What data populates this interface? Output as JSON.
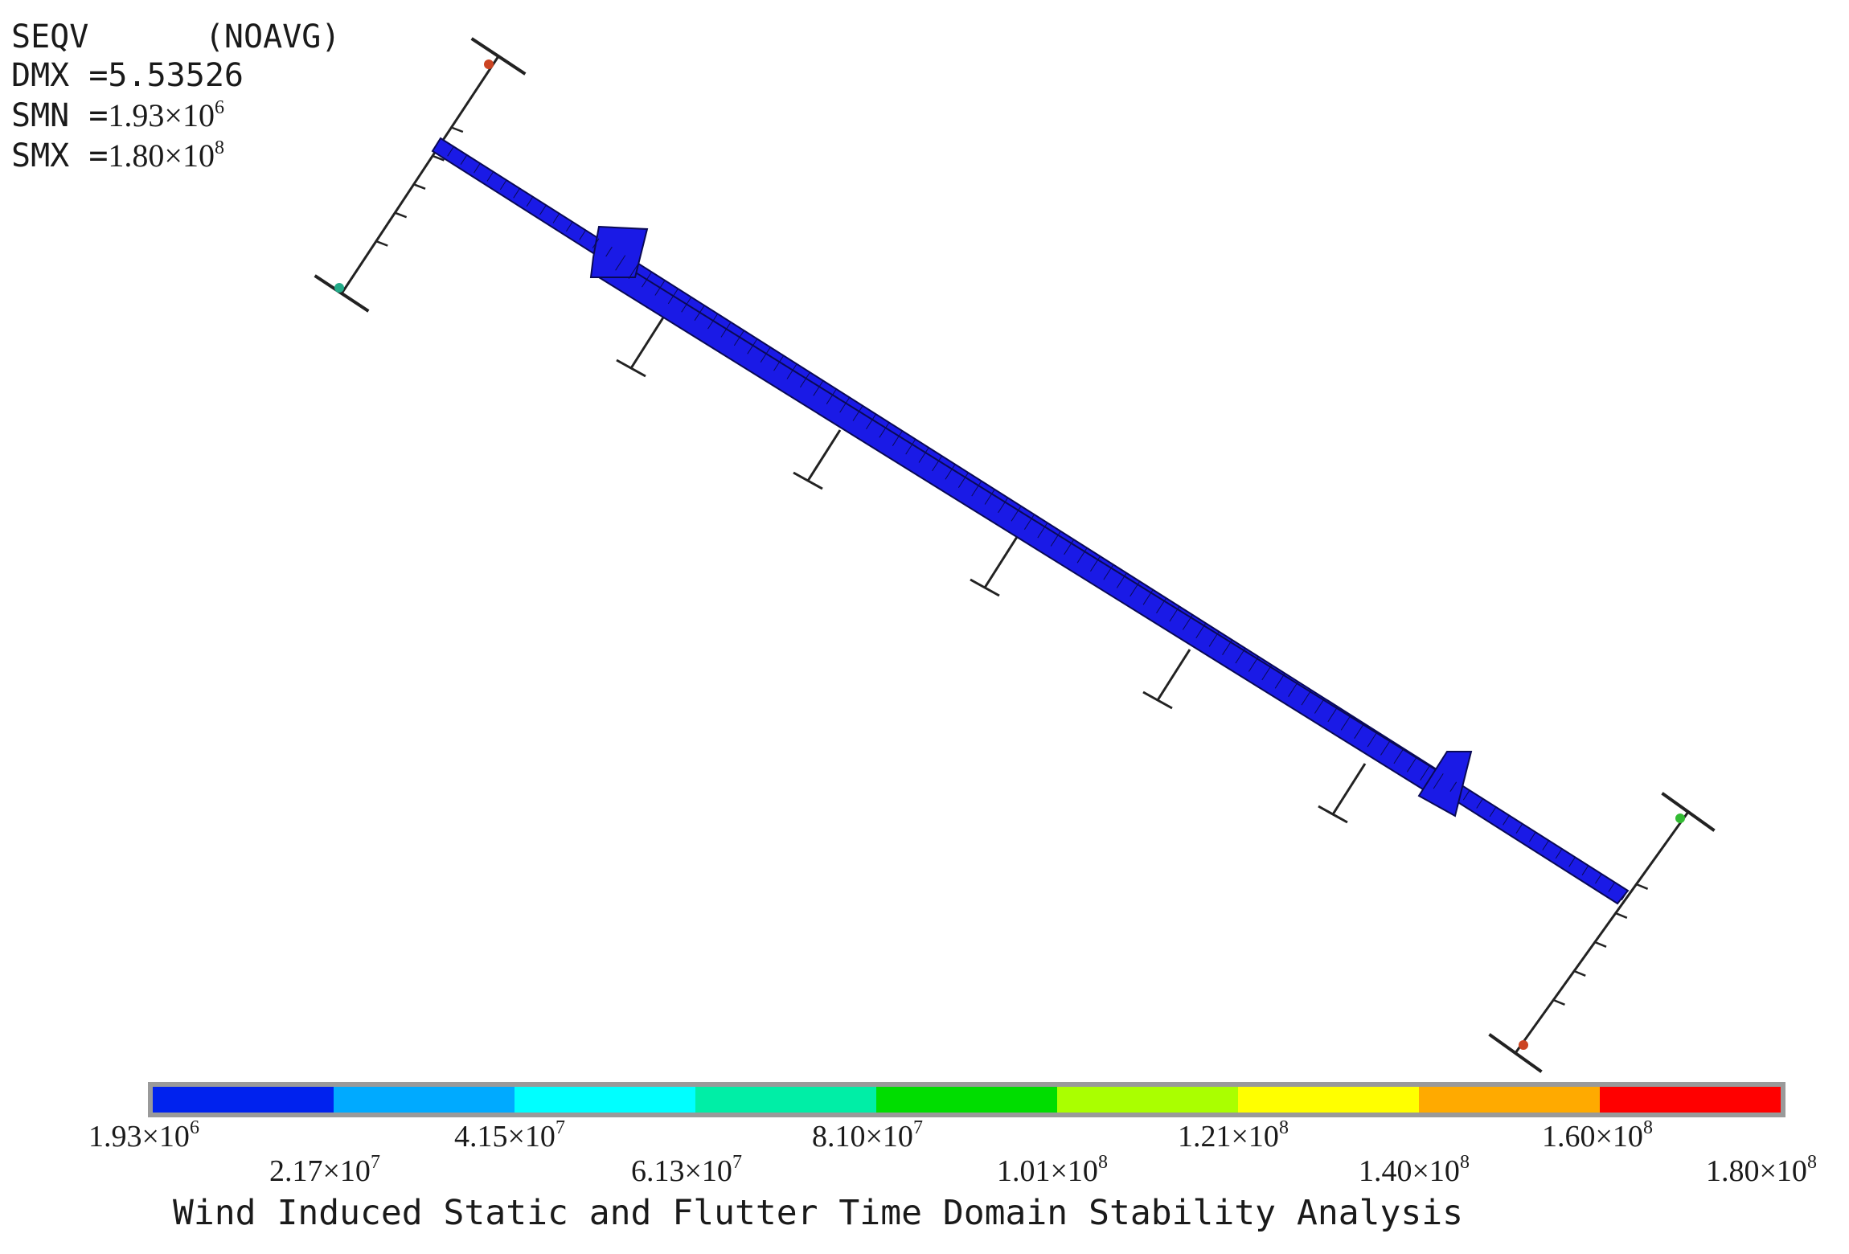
{
  "header": {
    "result_label": "SEQV",
    "avg_label": "(NOAVG)",
    "dmx_label": "DMX =",
    "dmx_value": "5.53526",
    "smn_label": "SMN =",
    "smn_mantissa": "1.93×10",
    "smn_exponent": "6",
    "smx_label": "SMX =",
    "smx_mantissa": "1.80×10",
    "smx_exponent": "8"
  },
  "legend": {
    "colors": [
      "#0022ee",
      "#00aaff",
      "#00ffff",
      "#00eea6",
      "#00dd00",
      "#aaff00",
      "#ffff00",
      "#ffaa00",
      "#ff0000"
    ],
    "labels": [
      {
        "mantissa": "1.93×10",
        "exponent": "6"
      },
      {
        "mantissa": "2.17×10",
        "exponent": "7"
      },
      {
        "mantissa": "4.15×10",
        "exponent": "7"
      },
      {
        "mantissa": "6.13×10",
        "exponent": "7"
      },
      {
        "mantissa": "8.10×10",
        "exponent": "7"
      },
      {
        "mantissa": "1.01×10",
        "exponent": "8"
      },
      {
        "mantissa": "1.21×10",
        "exponent": "8"
      },
      {
        "mantissa": "1.40×10",
        "exponent": "8"
      },
      {
        "mantissa": "1.60×10",
        "exponent": "8"
      },
      {
        "mantissa": "1.80×10",
        "exponent": "8"
      }
    ]
  },
  "model": {
    "deck_color": "#1a1ae6",
    "mesh_color": "#0a0a55",
    "tower_color": "#222222",
    "tower_top_marker_color": "#cc4422",
    "tower_base_marker_color": "#22aa88",
    "right_tower_marker_color": "#33bb33"
  },
  "footer": {
    "title": "Wind Induced Static and Flutter Time Domain Stability Analysis"
  }
}
